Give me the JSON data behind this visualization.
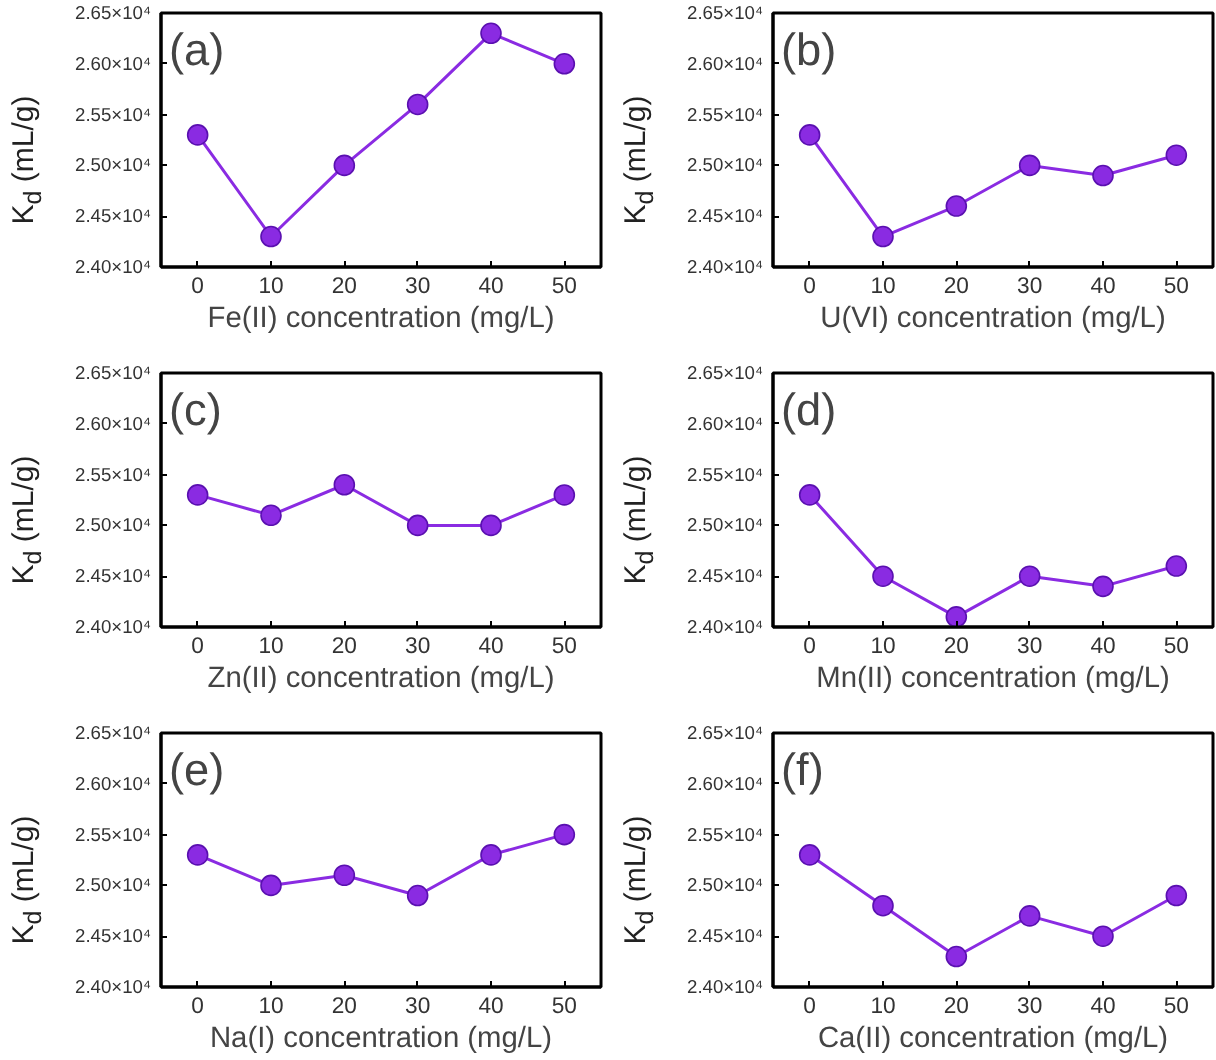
{
  "chart_data": [
    {
      "type": "line",
      "xlabel": "Fe(II) concentration (mg/L)",
      "ylabel": "K$_{d}$ (mL/g)",
      "annotations": [
        "(a)"
      ],
      "x": [
        0,
        10,
        20,
        30,
        40,
        50
      ],
      "series": [
        {
          "color": "#8a2be2",
          "values": [
            25300,
            24300,
            25000,
            25600,
            26300,
            26000
          ]
        }
      ],
      "xlim": [
        -5,
        55
      ],
      "xticks": [
        0,
        10,
        20,
        30,
        40,
        50
      ],
      "ylim": [
        24000,
        26500
      ],
      "yticks": [
        {
          "value": 24000,
          "label": "2.40×10⁴"
        },
        {
          "value": 24500,
          "label": "2.45×10⁴"
        },
        {
          "value": 25000,
          "label": "2.50×10⁴"
        },
        {
          "value": 25500,
          "label": "2.55×10⁴"
        },
        {
          "value": 26000,
          "label": "2.60×10⁴"
        },
        {
          "value": 26500,
          "label": "2.65×10⁴"
        }
      ],
      "marker": "circle",
      "line_style": "solid",
      "grid": false
    },
    {
      "type": "line",
      "xlabel": "U(VI) concentration (mg/L)",
      "ylabel": "K$_{d}$ (mL/g)",
      "annotations": [
        "(b)"
      ],
      "x": [
        0,
        10,
        20,
        30,
        40,
        50
      ],
      "series": [
        {
          "color": "#8a2be2",
          "values": [
            25300,
            24300,
            24600,
            25000,
            24900,
            25100
          ]
        }
      ],
      "xlim": [
        -5,
        55
      ],
      "xticks": [
        0,
        10,
        20,
        30,
        40,
        50
      ],
      "ylim": [
        24000,
        26500
      ],
      "yticks": [
        {
          "value": 24000,
          "label": "2.40×10⁴"
        },
        {
          "value": 24500,
          "label": "2.45×10⁴"
        },
        {
          "value": 25000,
          "label": "2.50×10⁴"
        },
        {
          "value": 25500,
          "label": "2.55×10⁴"
        },
        {
          "value": 26000,
          "label": "2.60×10⁴"
        },
        {
          "value": 26500,
          "label": "2.65×10⁴"
        }
      ],
      "marker": "circle",
      "line_style": "solid",
      "grid": false
    },
    {
      "type": "line",
      "xlabel": "Zn(II) concentration (mg/L)",
      "ylabel": "K$_{d}$ (mL/g)",
      "annotations": [
        "(c)"
      ],
      "x": [
        0,
        10,
        20,
        30,
        40,
        50
      ],
      "series": [
        {
          "color": "#8a2be2",
          "values": [
            25300,
            25100,
            25400,
            25000,
            25000,
            25300
          ]
        }
      ],
      "xlim": [
        -5,
        55
      ],
      "xticks": [
        0,
        10,
        20,
        30,
        40,
        50
      ],
      "ylim": [
        24000,
        26500
      ],
      "yticks": [
        {
          "value": 24000,
          "label": "2.40×10⁴"
        },
        {
          "value": 24500,
          "label": "2.45×10⁴"
        },
        {
          "value": 25000,
          "label": "2.50×10⁴"
        },
        {
          "value": 25500,
          "label": "2.55×10⁴"
        },
        {
          "value": 26000,
          "label": "2.60×10⁴"
        },
        {
          "value": 26500,
          "label": "2.65×10⁴"
        }
      ],
      "marker": "circle",
      "line_style": "solid",
      "grid": false
    },
    {
      "type": "line",
      "xlabel": "Mn(II) concentration (mg/L)",
      "ylabel": "K$_{d}$ (mL/g)",
      "annotations": [
        "(d)"
      ],
      "x": [
        0,
        10,
        20,
        30,
        40,
        50
      ],
      "series": [
        {
          "color": "#8a2be2",
          "values": [
            25300,
            24500,
            24100,
            24500,
            24400,
            24600
          ]
        }
      ],
      "xlim": [
        -5,
        55
      ],
      "xticks": [
        0,
        10,
        20,
        30,
        40,
        50
      ],
      "ylim": [
        24000,
        26500
      ],
      "yticks": [
        {
          "value": 24000,
          "label": "2.40×10⁴"
        },
        {
          "value": 24500,
          "label": "2.45×10⁴"
        },
        {
          "value": 25000,
          "label": "2.50×10⁴"
        },
        {
          "value": 25500,
          "label": "2.55×10⁴"
        },
        {
          "value": 26000,
          "label": "2.60×10⁴"
        },
        {
          "value": 26500,
          "label": "2.65×10⁴"
        }
      ],
      "marker": "circle",
      "line_style": "solid",
      "grid": false
    },
    {
      "type": "line",
      "xlabel": "Na(I) concentration (mg/L)",
      "ylabel": "K$_{d}$ (mL/g)",
      "annotations": [
        "(e)"
      ],
      "x": [
        0,
        10,
        20,
        30,
        40,
        50
      ],
      "series": [
        {
          "color": "#8a2be2",
          "values": [
            25300,
            25000,
            25100,
            24900,
            25300,
            25500
          ]
        }
      ],
      "xlim": [
        -5,
        55
      ],
      "xticks": [
        0,
        10,
        20,
        30,
        40,
        50
      ],
      "ylim": [
        24000,
        26500
      ],
      "yticks": [
        {
          "value": 24000,
          "label": "2.40×10⁴"
        },
        {
          "value": 24500,
          "label": "2.45×10⁴"
        },
        {
          "value": 25000,
          "label": "2.50×10⁴"
        },
        {
          "value": 25500,
          "label": "2.55×10⁴"
        },
        {
          "value": 26000,
          "label": "2.60×10⁴"
        },
        {
          "value": 26500,
          "label": "2.65×10⁴"
        }
      ],
      "marker": "circle",
      "line_style": "solid",
      "grid": false
    },
    {
      "type": "line",
      "xlabel": "Ca(II) concentration (mg/L)",
      "ylabel": "K$_{d}$ (mL/g)",
      "annotations": [
        "(f)"
      ],
      "x": [
        0,
        10,
        20,
        30,
        40,
        50
      ],
      "series": [
        {
          "color": "#8a2be2",
          "values": [
            25300,
            24800,
            24300,
            24700,
            24500,
            24900
          ]
        }
      ],
      "xlim": [
        -5,
        55
      ],
      "xticks": [
        0,
        10,
        20,
        30,
        40,
        50
      ],
      "ylim": [
        24000,
        26500
      ],
      "yticks": [
        {
          "value": 24000,
          "label": "2.40×10⁴"
        },
        {
          "value": 24500,
          "label": "2.45×10⁴"
        },
        {
          "value": 25000,
          "label": "2.50×10⁴"
        },
        {
          "value": 25500,
          "label": "2.55×10⁴"
        },
        {
          "value": 26000,
          "label": "2.60×10⁴"
        },
        {
          "value": 26500,
          "label": "2.65×10⁴"
        }
      ],
      "marker": "circle",
      "line_style": "solid",
      "grid": false
    }
  ]
}
